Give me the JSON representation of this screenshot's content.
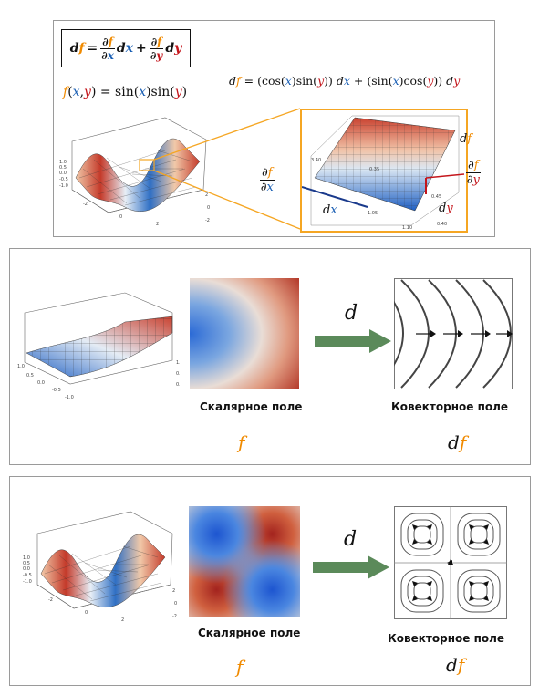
{
  "panel1": {
    "df_formula": {
      "df": "df",
      "eq": "=",
      "df_dx_num": "∂f",
      "df_dx_den": "∂x",
      "dx": "dx",
      "plus": "+",
      "df_dy_num": "∂f",
      "df_dy_den": "∂y",
      "dy": "dy"
    },
    "function_def": {
      "f": "f",
      "open": "(",
      "x": "x",
      "comma": ",",
      "y": "y",
      "close": ")",
      "eq": " = sin(",
      "x2": "x",
      ")sin(": ")sin(",
      "y2": "y",
      "end": ")"
    },
    "expanded": {
      "df": "df",
      "eq": " = (cos(",
      "x1": "x",
      "m1": ")sin(",
      "y1": "y",
      "m2": "))",
      "dx": "dx",
      "plus": " + (sin(",
      "x2": "x",
      "m3": ")cos(",
      "y2": "y",
      "m4": "))",
      "dy": "dy"
    },
    "zoom_labels": {
      "df": "df",
      "dfdx_num": "∂f",
      "dfdx_den": "∂x",
      "dfdy_num": "∂f",
      "dfdy_den": "∂y",
      "dx": "dx",
      "dy": "dy"
    },
    "small_ticks": {
      "t1": "3.40",
      "t2": "0.35",
      "t3": "0.45",
      "t4": "1.05",
      "t5": "0.40",
      "t6": "1.10"
    }
  },
  "panel2": {
    "scalar_label": "Скалярное поле",
    "covector_label": "Ковекторное поле",
    "operator": "d",
    "f": "f",
    "df_d": "d",
    "df_f": "f"
  },
  "panel3": {
    "scalar_label": "Скалярное поле",
    "covector_label": "Ковекторное поле",
    "operator": "d",
    "f": "f",
    "df_d": "d",
    "df_f": "f"
  },
  "colors": {
    "orange": "#f08a00",
    "blue": "#1a5fb4",
    "red": "#c4161c",
    "arrow_green": "#5b8a5a",
    "frame_orange": "#f5a623"
  }
}
